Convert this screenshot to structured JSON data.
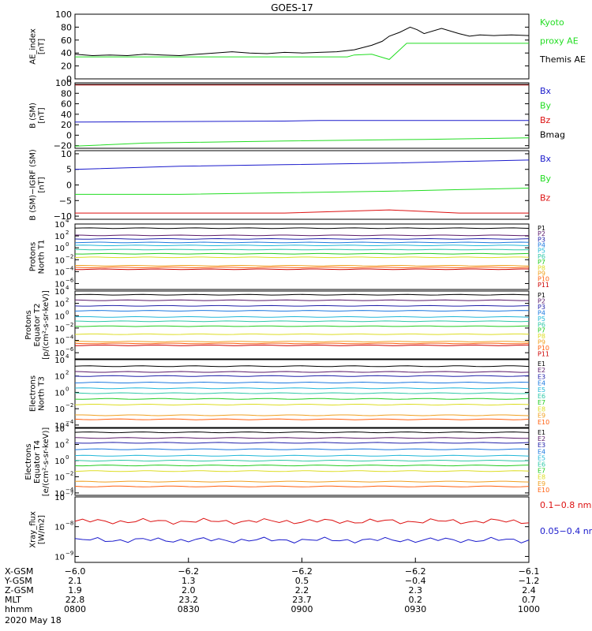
{
  "title": "GOES-17",
  "colors": {
    "black": "#000000",
    "green": "#22dd22",
    "blue": "#1a1acc",
    "red": "#dd1111",
    "p_colors": [
      "#000000",
      "#5a1a6a",
      "#2222aa",
      "#1e7ae0",
      "#22b8d8",
      "#30c8a8",
      "#22cc22",
      "#dddd22",
      "#f0a020",
      "#ff6010",
      "#cc0000"
    ],
    "e_colors": [
      "#000000",
      "#5a1a6a",
      "#2222aa",
      "#1e7ae0",
      "#22b8d8",
      "#30c8a8",
      "#22cc22",
      "#dddd22",
      "#f0a020",
      "#ff6010",
      "#cc0000"
    ]
  },
  "chart_data": [
    {
      "id": "ae",
      "type": "line",
      "ylabel": [
        "AE_index",
        "[nT]"
      ],
      "yticks": [
        "100",
        "80",
        "60",
        "40",
        "20",
        "0"
      ],
      "ylim": [
        0,
        100
      ],
      "legend": [
        {
          "text": "Kyoto",
          "color": "green"
        },
        {
          "text": "proxy AE",
          "color": "green"
        },
        {
          "text": "Themis AE",
          "color": "black"
        }
      ],
      "series": [
        {
          "name": "Themis AE",
          "color": "black",
          "points": [
            [
              0,
              38
            ],
            [
              0.05,
              36
            ],
            [
              0.1,
              37
            ],
            [
              0.15,
              36
            ],
            [
              0.2,
              38
            ],
            [
              0.25,
              37
            ],
            [
              0.3,
              36
            ],
            [
              0.35,
              38
            ],
            [
              0.4,
              40
            ],
            [
              0.45,
              42
            ],
            [
              0.5,
              40
            ],
            [
              0.55,
              39
            ],
            [
              0.6,
              41
            ],
            [
              0.65,
              40
            ],
            [
              0.7,
              41
            ],
            [
              0.75,
              42
            ],
            [
              0.8,
              45
            ],
            [
              0.85,
              52
            ],
            [
              0.88,
              58
            ],
            [
              0.9,
              66
            ],
            [
              0.93,
              72
            ],
            [
              0.96,
              80
            ],
            [
              0.98,
              76
            ],
            [
              1.0,
              70
            ],
            [
              1.05,
              78
            ],
            [
              1.1,
              70
            ],
            [
              1.13,
              66
            ],
            [
              1.16,
              68
            ],
            [
              1.2,
              67
            ],
            [
              1.25,
              68
            ],
            [
              1.3,
              67
            ]
          ]
        },
        {
          "name": "Kyoto proxy AE",
          "color": "green",
          "points": [
            [
              0,
              34
            ],
            [
              0.2,
              34
            ],
            [
              0.4,
              34
            ],
            [
              0.6,
              34
            ],
            [
              0.78,
              34
            ],
            [
              0.8,
              37
            ],
            [
              0.85,
              38
            ],
            [
              0.9,
              30
            ],
            [
              0.95,
              55
            ],
            [
              1.0,
              55
            ],
            [
              1.2,
              55
            ],
            [
              1.3,
              55
            ]
          ]
        }
      ]
    },
    {
      "id": "bsm",
      "type": "line",
      "ylabel": [
        "B (SM)",
        "[nT]"
      ],
      "yticks": [
        "100",
        "80",
        "60",
        "40",
        "20",
        "0",
        "−20"
      ],
      "ylim": [
        -25,
        100
      ],
      "legend": [
        {
          "text": "Bx",
          "color": "blue"
        },
        {
          "text": "By",
          "color": "green"
        },
        {
          "text": "Bz",
          "color": "red"
        },
        {
          "text": "Bmag",
          "color": "black"
        }
      ],
      "series": [
        {
          "name": "Bz",
          "color": "red",
          "points": [
            [
              0,
              96
            ],
            [
              1.3,
              96
            ]
          ]
        },
        {
          "name": "Bmag",
          "color": "black",
          "points": [
            [
              0,
              97
            ],
            [
              1.3,
              97
            ]
          ]
        },
        {
          "name": "Bx",
          "color": "blue",
          "points": [
            [
              0,
              25
            ],
            [
              0.3,
              26
            ],
            [
              0.6,
              27
            ],
            [
              0.7,
              28
            ],
            [
              1.0,
              28
            ],
            [
              1.3,
              28
            ]
          ]
        },
        {
          "name": "By",
          "color": "green",
          "points": [
            [
              0,
              -21
            ],
            [
              0.2,
              -15
            ],
            [
              0.6,
              -11
            ],
            [
              1.0,
              -8
            ],
            [
              1.3,
              -5
            ]
          ]
        }
      ]
    },
    {
      "id": "bigrf",
      "type": "line",
      "ylabel": [
        "B (SM)−IGRF (SM)",
        "[nT]"
      ],
      "yticks": [
        "10",
        "5",
        "0",
        "−5",
        "−10"
      ],
      "ylim": [
        -11,
        11
      ],
      "legend": [
        {
          "text": "Bx",
          "color": "blue"
        },
        {
          "text": "By",
          "color": "green"
        },
        {
          "text": "Bz",
          "color": "red"
        }
      ],
      "series": [
        {
          "name": "Bx",
          "color": "blue",
          "points": [
            [
              0,
              5
            ],
            [
              0.3,
              6
            ],
            [
              0.6,
              6.5
            ],
            [
              0.9,
              7
            ],
            [
              1.1,
              7.5
            ],
            [
              1.3,
              8
            ]
          ]
        },
        {
          "name": "By",
          "color": "green",
          "points": [
            [
              0,
              -3
            ],
            [
              0.3,
              -3
            ],
            [
              0.6,
              -2.5
            ],
            [
              0.9,
              -2
            ],
            [
              1.1,
              -1.5
            ],
            [
              1.3,
              -1
            ]
          ]
        },
        {
          "name": "Bz",
          "color": "red",
          "points": [
            [
              0,
              -9
            ],
            [
              0.3,
              -9
            ],
            [
              0.6,
              -9
            ],
            [
              0.9,
              -8
            ],
            [
              1.1,
              -9
            ],
            [
              1.3,
              -9
            ]
          ]
        }
      ]
    },
    {
      "id": "pn",
      "type": "line",
      "log": true,
      "ylabel": [
        "Protons",
        "North T1"
      ],
      "yticks": [
        [
          "10",
          "4"
        ],
        [
          "10",
          "2"
        ],
        [
          "10",
          "0"
        ],
        [
          "10",
          "−2"
        ],
        [
          "10",
          "−4"
        ],
        [
          "10",
          "−6"
        ]
      ],
      "ylim": [
        -7,
        4
      ],
      "legend": [
        "P1",
        "P2",
        "P3",
        "P4",
        "P5",
        "P6",
        "P7",
        "P8",
        "P9",
        "P10",
        "P11"
      ],
      "levels": [
        3.3,
        2.1,
        1.5,
        0.9,
        0.4,
        -0.3,
        -1.0,
        -1.6,
        -3.0,
        -3.3,
        -3.6
      ]
    },
    {
      "id": "pe",
      "type": "line",
      "log": true,
      "ylabel": [
        "Protons",
        "Equator T2",
        "[p/(cm²-s-sr-keV)]"
      ],
      "yticks": [
        [
          "10",
          "4"
        ],
        [
          "10",
          "2"
        ],
        [
          "10",
          "0"
        ],
        [
          "10",
          "−2"
        ],
        [
          "10",
          "−4"
        ],
        [
          "10",
          "−6"
        ]
      ],
      "ylim": [
        -7,
        4
      ],
      "legend": [
        "P1",
        "P2",
        "P3",
        "P4",
        "P5",
        "P6",
        "P7",
        "P8",
        "P9",
        "P10",
        "P11"
      ],
      "levels": [
        3.4,
        2.5,
        1.6,
        0.8,
        -0.2,
        -0.9,
        -1.7,
        -3.0,
        -4.2,
        -4.5,
        -4.8
      ]
    },
    {
      "id": "en",
      "type": "line",
      "log": true,
      "ylabel": [
        "Electrons",
        "North T3"
      ],
      "yticks": [
        [
          "10",
          "4"
        ],
        [
          "10",
          "2"
        ],
        [
          "10",
          "0"
        ],
        [
          "10",
          "−2"
        ],
        [
          "10",
          "−4"
        ]
      ],
      "ylim": [
        -4.3,
        4
      ],
      "legend": [
        "E1",
        "E2",
        "E3",
        "E4",
        "E5",
        "E6",
        "E7",
        "E8",
        "E9",
        "E10"
      ],
      "levels": [
        3.2,
        2.5,
        2.0,
        1.2,
        0.5,
        -0.1,
        -0.8,
        -1.5,
        -2.8,
        -3.3
      ]
    },
    {
      "id": "ee",
      "type": "line",
      "log": true,
      "ylabel": [
        "Electrons",
        "Equator T4",
        "[e/(cm²-s-sr-keV)]"
      ],
      "yticks": [
        [
          "10",
          "4"
        ],
        [
          "10",
          "2"
        ],
        [
          "10",
          "0"
        ],
        [
          "10",
          "−2"
        ],
        [
          "10",
          "−4"
        ]
      ],
      "ylim": [
        -4.3,
        4
      ],
      "legend": [
        "E1",
        "E2",
        "E3",
        "E4",
        "E5",
        "E6",
        "E7",
        "E8",
        "E9",
        "E10"
      ],
      "levels": [
        3.5,
        2.8,
        2.2,
        1.4,
        0.6,
        0.0,
        -0.6,
        -1.3,
        -2.6,
        -3.2
      ]
    },
    {
      "id": "xray",
      "type": "line",
      "log": true,
      "ylabel": [
        "Xray_flux",
        "[W/m2]"
      ],
      "yticks": [
        [
          "10",
          "−7"
        ],
        [
          "10",
          "−8"
        ],
        [
          "10",
          "−9"
        ]
      ],
      "ylim": [
        -9.2,
        -7
      ],
      "legend": [
        {
          "text": "0.1−0.8 nm",
          "color": "red"
        },
        {
          "text": "0.05−0.4 nm",
          "color": "blue"
        }
      ],
      "levels": [
        -7.82,
        -8.45
      ]
    }
  ],
  "xaxis": {
    "row_labels": [
      "X-GSM",
      "Y-GSM",
      "Z-GSM",
      "MLT",
      "hhmm"
    ],
    "date": "2020 May 18",
    "columns": [
      [
        "−6.0",
        "2.1",
        "1.9",
        "22.8",
        "0800"
      ],
      [
        "−6.2",
        "1.3",
        "2.0",
        "23.2",
        "0830"
      ],
      [
        "−6.2",
        "0.5",
        "2.2",
        "23.7",
        "0900"
      ],
      [
        "−6.2",
        "−0.4",
        "2.3",
        "0.2",
        "0930"
      ],
      [
        "−6.1",
        "−1.2",
        "2.4",
        "0.7",
        "1000"
      ]
    ]
  }
}
